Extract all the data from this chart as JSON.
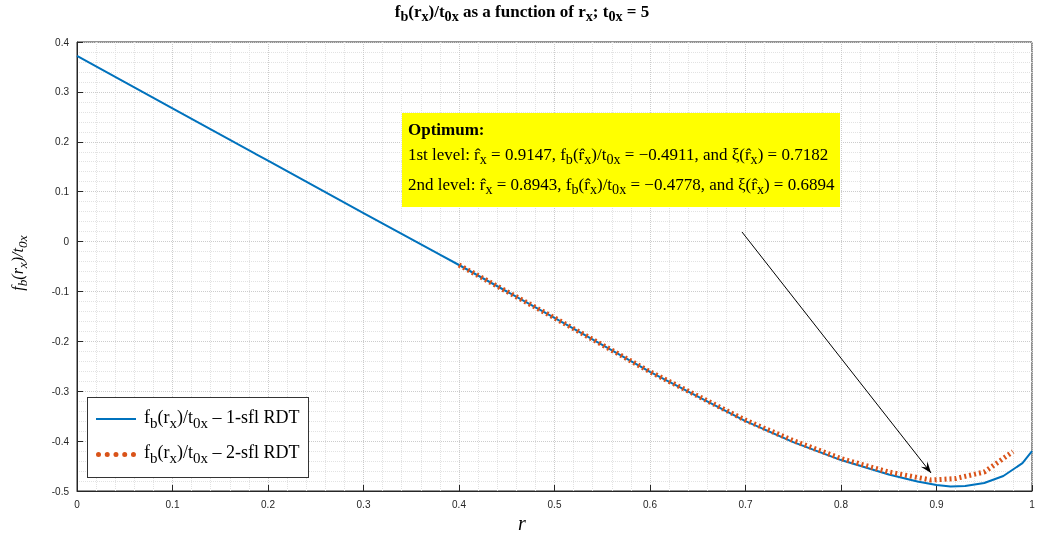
{
  "chart_data": {
    "type": "line",
    "title": "f$_{b}$(r$_{x}$)/t$_{0x}$ as a function of r$_{x}$; t$_{0x}$ = 5",
    "xlabel": "r",
    "ylabel": "f$_{b}$(r$_{x}$)/t$_{0x}$",
    "xlim": [
      0,
      1
    ],
    "xticks": [
      0,
      0.1,
      0.2,
      0.3,
      0.4,
      0.5,
      0.6,
      0.7,
      0.8,
      0.9,
      1
    ],
    "ylim": [
      -0.5,
      0.4
    ],
    "yticks": [
      -0.5,
      -0.4,
      -0.3,
      -0.2,
      -0.1,
      0,
      0.1,
      0.2,
      0.3,
      0.4
    ],
    "grid": true,
    "legend": "bottom left",
    "marker": "none",
    "series": [
      {
        "name": "f$_{b}$(r$_{x}$)/t$_{0x}$ – 1-sfl RDT",
        "color": "#0072bd",
        "line_style": "solid",
        "x": [
          0,
          0.1,
          0.2,
          0.3,
          0.4,
          0.5,
          0.6,
          0.7,
          0.75,
          0.8,
          0.85,
          0.88,
          0.9,
          0.9147,
          0.93,
          0.95,
          0.97,
          0.99,
          1
        ],
        "values": [
          0.372,
          0.267,
          0.162,
          0.057,
          -0.047,
          -0.153,
          -0.261,
          -0.36,
          -0.402,
          -0.438,
          -0.467,
          -0.481,
          -0.488,
          -0.491,
          -0.49,
          -0.484,
          -0.47,
          -0.444,
          -0.42
        ]
      },
      {
        "name": "f$_{b}$(r$_{x}$)/t$_{0x}$ – 2-sfl RDT",
        "color": "#d95319",
        "line_style": "dotted",
        "x": [
          0.4,
          0.5,
          0.6,
          0.7,
          0.75,
          0.8,
          0.85,
          0.8943,
          0.92,
          0.95,
          0.98
        ],
        "values": [
          -0.047,
          -0.153,
          -0.261,
          -0.358,
          -0.399,
          -0.435,
          -0.462,
          -0.478,
          -0.475,
          -0.462,
          -0.421
        ]
      }
    ],
    "annotations": [
      "Optimum:",
      "1st level: r̂$_{x}$ = 0.9147, f$_{b}$(r̂$_{x}$)/t$_{0x}$ = −0.4911, and ξ(r̂$_{x}$) = 0.7182",
      "2nd level: r̂$_{x}$ = 0.8943, f$_{b}$(r̂$_{x}$)/t$_{0x}$ = −0.4778, and ξ(r̂$_{x}$) = 0.6894"
    ]
  }
}
